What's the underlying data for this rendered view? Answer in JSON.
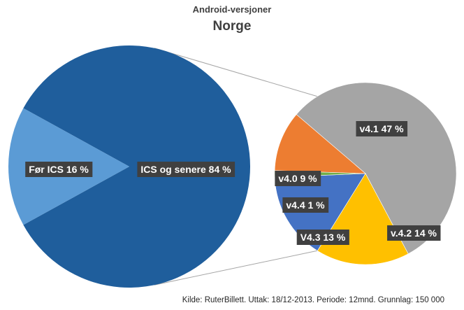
{
  "chart_data": {
    "type": "pie",
    "subtype": "pie-of-pie",
    "title": "Android-versjoner",
    "subtitle": "Norge",
    "main_pie": {
      "slices": [
        {
          "label": "Før ICS",
          "value": 16,
          "display": "Før ICS   16 %",
          "color": "#5b9bd5"
        },
        {
          "label": "ICS og senere",
          "value": 84,
          "display": "ICS og senere   84 %",
          "color": "#1f5e9c"
        }
      ]
    },
    "secondary_pie": {
      "breakdown_of": "ICS og senere",
      "slices": [
        {
          "label": "v4.1",
          "value": 47,
          "display": "v4.1   47 %",
          "color": "#a5a5a5"
        },
        {
          "label": "v.4.2",
          "value": 14,
          "display": "v.4.2   14 %",
          "color": "#ffc000"
        },
        {
          "label": "V4.3",
          "value": 13,
          "display": "V4.3   13 %",
          "color": "#4472c4"
        },
        {
          "label": "v4.4",
          "value": 1,
          "display": "v4.4   1 %",
          "color": "#70ad47"
        },
        {
          "label": "v4.0",
          "value": 9,
          "display": "v4.0   9 %",
          "color": "#ed7d31"
        }
      ]
    },
    "source": "Kilde: RuterBillett. Uttak: 18/12-2013. Periode: 12mnd. Grunnlag: 150 000"
  }
}
